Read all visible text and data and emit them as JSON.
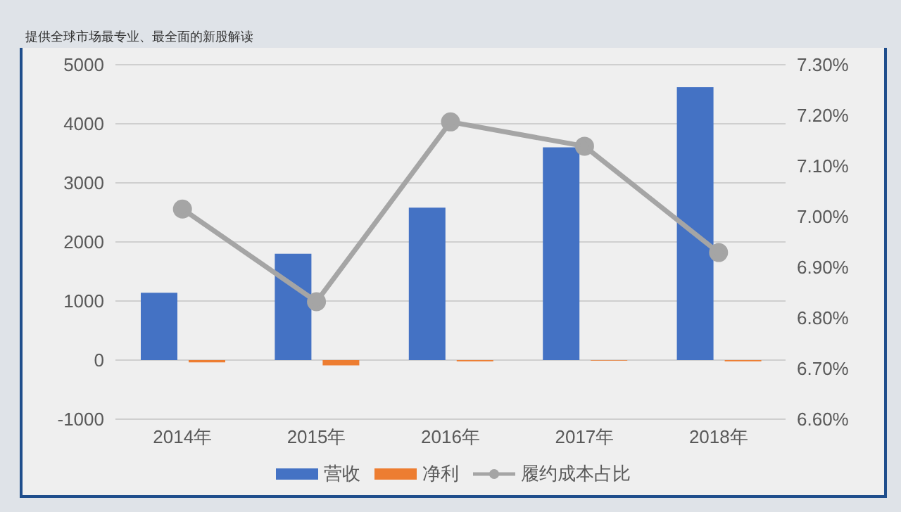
{
  "chart_data": {
    "type": "bar",
    "subtitle": "提供全球市场最专业、最全面的新股解读",
    "categories": [
      "2014年",
      "2015年",
      "2016年",
      "2017年",
      "2018年"
    ],
    "series": [
      {
        "name": "营收",
        "color": "#4472c4",
        "values": [
          1140,
          1800,
          2580,
          3600,
          4620
        ]
      },
      {
        "name": "净利",
        "color": "#ed7d31",
        "values": [
          -40,
          -90,
          -20,
          -10,
          -20
        ]
      },
      {
        "name": "履约成本占比",
        "type": "line",
        "axis": "y2",
        "color": "#a5a5a5",
        "values": [
          7.015,
          6.832,
          7.187,
          7.139,
          6.929
        ]
      }
    ],
    "ylim": [
      -1000,
      5000
    ],
    "yticks": [
      -1000,
      0,
      1000,
      2000,
      3000,
      4000,
      5000
    ],
    "y2lim": [
      6.6,
      7.3
    ],
    "y2ticks": [
      {
        "value": 6.6,
        "label": "6.60%"
      },
      {
        "value": 6.7,
        "label": "6.70%"
      },
      {
        "value": 6.8,
        "label": "6.80%"
      },
      {
        "value": 6.9,
        "label": "6.90%"
      },
      {
        "value": 7.0,
        "label": "7.00%"
      },
      {
        "value": 7.1,
        "label": "7.10%"
      },
      {
        "value": 7.2,
        "label": "7.20%"
      },
      {
        "value": 7.3,
        "label": "7.30%"
      }
    ],
    "grid": "y",
    "legend": "bottom",
    "marker": "circle"
  }
}
